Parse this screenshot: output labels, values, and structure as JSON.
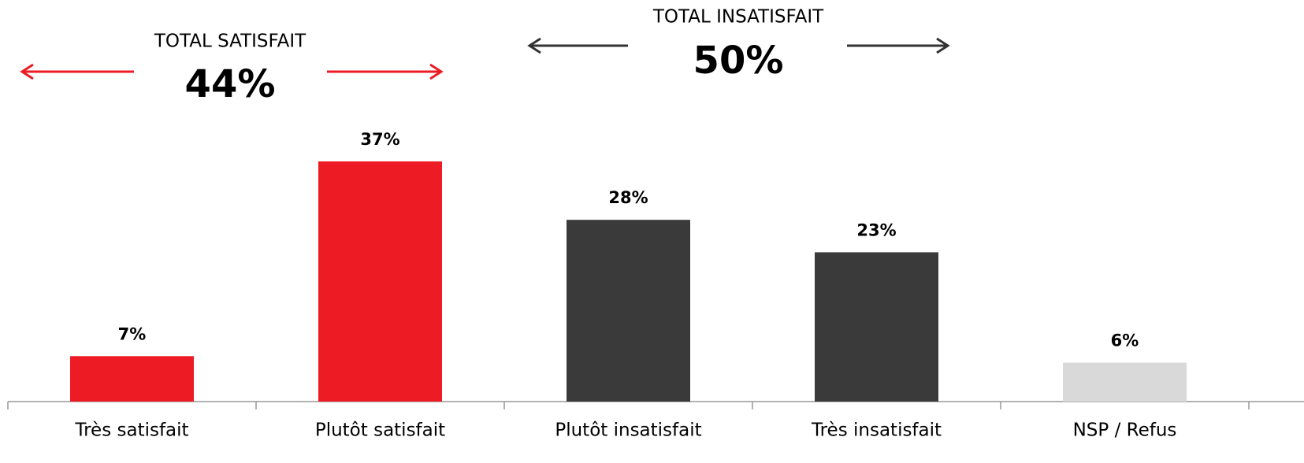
{
  "chart_data": {
    "type": "bar",
    "categories": [
      "Très satisfait",
      "Plutôt satisfait",
      "Plutôt insatisfait",
      "Très insatisfait",
      "NSP / Refus"
    ],
    "values": [
      7,
      37,
      28,
      23,
      6
    ],
    "value_labels": [
      "7%",
      "37%",
      "28%",
      "23%",
      "6%"
    ],
    "colors": [
      "#ed1c24",
      "#ed1c24",
      "#3a3a3a",
      "#3a3a3a",
      "#d9d9d9"
    ],
    "annotations": [
      {
        "title": "TOTAL SATISFAIT",
        "total": "44%",
        "color": "#ed1c24"
      },
      {
        "title": "TOTAL INSATISFAIT",
        "total": "50%",
        "color": "#333333"
      }
    ]
  }
}
